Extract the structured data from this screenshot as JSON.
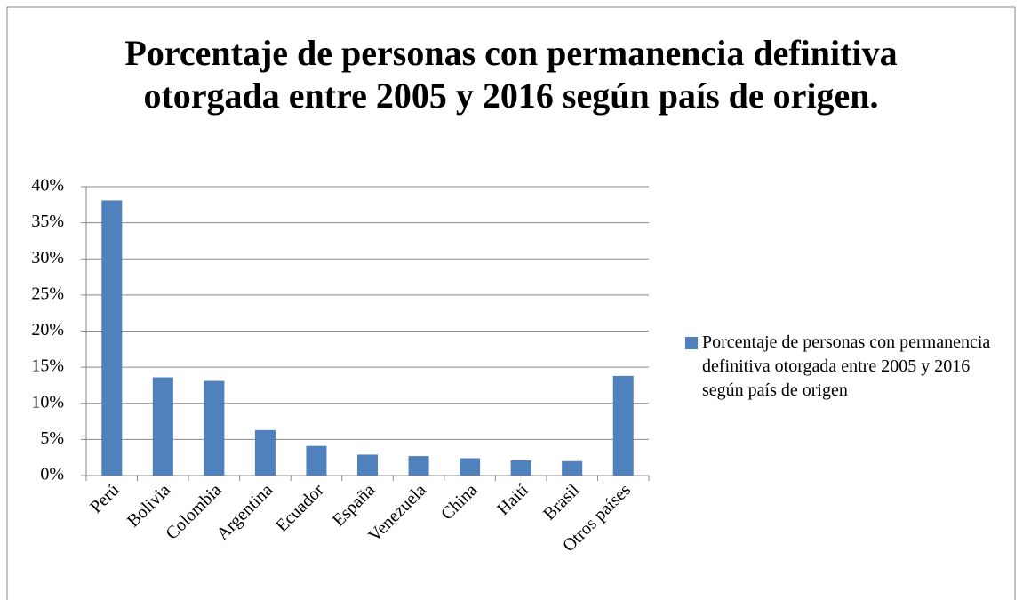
{
  "chart_data": {
    "type": "bar",
    "title": "Porcentaje de personas con permanencia definitiva otorgada entre 2005 y 2016 según país de origen.",
    "categories": [
      "Perú",
      "Bolivia",
      "Colombia",
      "Argentina",
      "Ecuador",
      "España",
      "Venezuela",
      "China",
      "Haití",
      "Brasil",
      "Otros países"
    ],
    "series": [
      {
        "name": "Porcentaje de personas con permanencia definitiva otorgada entre 2005 y 2016 según país de origen",
        "color": "#4f81bd",
        "values": [
          38.1,
          13.6,
          13.1,
          6.3,
          4.1,
          2.9,
          2.7,
          2.4,
          2.1,
          2.0,
          13.8
        ]
      }
    ],
    "ylim": [
      0,
      40
    ],
    "yticks": [
      {
        "value": 0,
        "label": "0%"
      },
      {
        "value": 5,
        "label": "5%"
      },
      {
        "value": 10,
        "label": "10%"
      },
      {
        "value": 15,
        "label": "15%"
      },
      {
        "value": 20,
        "label": "20%"
      },
      {
        "value": 25,
        "label": "25%"
      },
      {
        "value": 30,
        "label": "30%"
      },
      {
        "value": 35,
        "label": "35%"
      },
      {
        "value": 40,
        "label": "40%"
      }
    ],
    "grid": true,
    "legend": "right"
  }
}
